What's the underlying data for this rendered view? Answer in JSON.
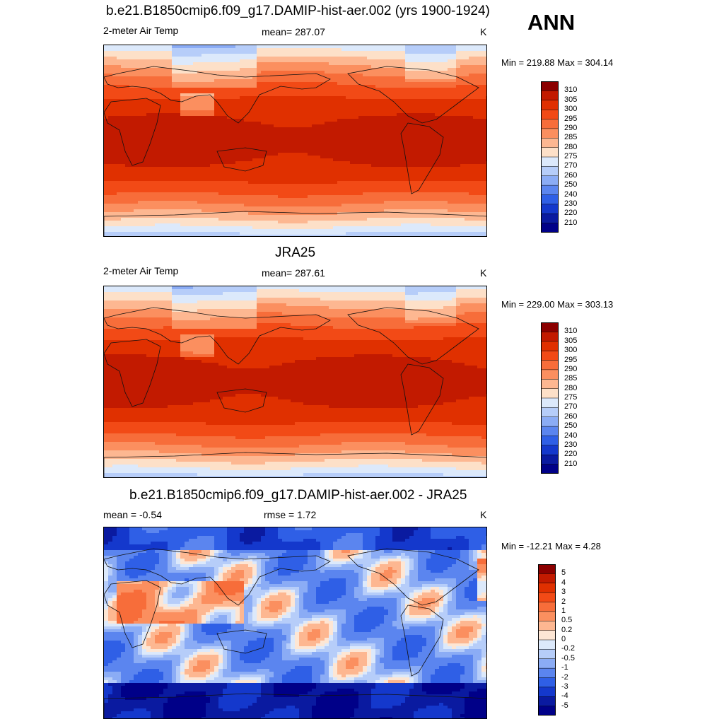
{
  "season": "ANN",
  "units": "K",
  "panels": [
    {
      "title": "b.e21.B1850cmip6.f09_g17.DAMIP-hist-aer.002 (yrs 1900-1924)",
      "left_text": "2-meter Air Temp",
      "center_text": "mean= 287.07",
      "right_text": "K",
      "minmax": "Min = 219.88 Max = 304.14",
      "type": "abs"
    },
    {
      "title": "JRA25",
      "left_text": "2-meter Air Temp",
      "center_text": "mean= 287.61",
      "right_text": "K",
      "minmax": "Min = 229.00 Max = 303.13",
      "type": "abs"
    },
    {
      "title": "b.e21.B1850cmip6.f09_g17.DAMIP-hist-aer.002 - JRA25",
      "left_text": "mean =  -0.54",
      "center_text": "rmse =   1.72",
      "right_text": "K",
      "minmax": "Min = -12.21 Max =   4.28",
      "type": "diff"
    }
  ],
  "colorbars": {
    "abs": {
      "labels": [
        "310",
        "305",
        "300",
        "295",
        "290",
        "285",
        "280",
        "275",
        "270",
        "260",
        "250",
        "240",
        "230",
        "220",
        "210"
      ],
      "colors": [
        "#8b0000",
        "#c21a00",
        "#e03000",
        "#f24a16",
        "#f76d3a",
        "#fb8f5f",
        "#fdb791",
        "#fde0c8",
        "#dce9fb",
        "#b6cdf9",
        "#8bacf5",
        "#5b85ef",
        "#2f5fe6",
        "#1438cc",
        "#0a1aa0",
        "#000088"
      ]
    },
    "diff": {
      "labels": [
        "5",
        "4",
        "3",
        "2",
        "1",
        "0.5",
        "0.2",
        "0",
        "-0.2",
        "-0.5",
        "-1",
        "-2",
        "-3",
        "-4",
        "-5"
      ],
      "colors": [
        "#8b0000",
        "#c21a00",
        "#e03000",
        "#f24a16",
        "#f76d3a",
        "#fb8f5f",
        "#fdb791",
        "#fde6d4",
        "#dce9fb",
        "#b6cdf9",
        "#8bacf5",
        "#5b85ef",
        "#2f5fe6",
        "#1438cc",
        "#0a1aa0",
        "#000088"
      ]
    }
  }
}
